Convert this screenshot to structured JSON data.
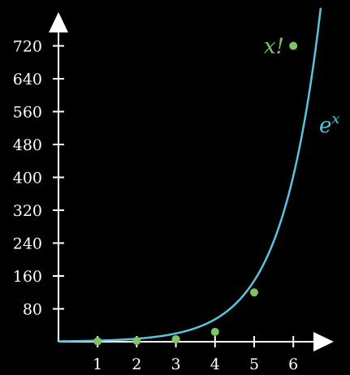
{
  "chart_data": {
    "type": "line",
    "title": "",
    "xlabel": "",
    "ylabel": "",
    "xlim": [
      0,
      6.7
    ],
    "ylim": [
      0,
      790
    ],
    "grid": false,
    "x_ticks": [
      1,
      2,
      3,
      4,
      5,
      6
    ],
    "y_ticks": [
      80,
      160,
      240,
      320,
      400,
      480,
      560,
      640,
      720
    ],
    "series": [
      {
        "name": "x!",
        "label_text": "x!",
        "type": "scatter",
        "color": "#83c167",
        "x": [
          1,
          2,
          3,
          4,
          5,
          6
        ],
        "y": [
          1,
          2,
          6,
          24,
          120,
          720
        ]
      },
      {
        "name": "e^x",
        "label_text": "e",
        "label_exponent": "x",
        "type": "line",
        "color": "#58c4dd",
        "function": "exp",
        "x_range": [
          0,
          6.7
        ]
      }
    ]
  }
}
